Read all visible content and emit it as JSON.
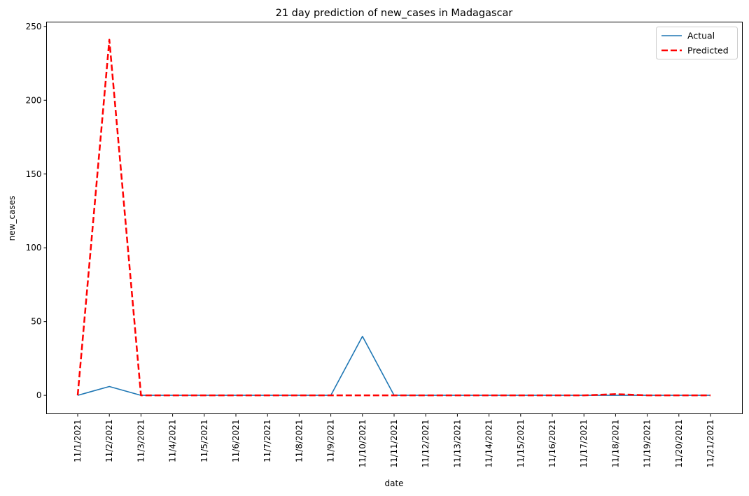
{
  "chart_data": {
    "type": "line",
    "title": "21 day prediction of new_cases in Madagascar",
    "xlabel": "date",
    "ylabel": "new_cases",
    "categories": [
      "11/1/2021",
      "11/2/2021",
      "11/3/2021",
      "11/4/2021",
      "11/5/2021",
      "11/6/2021",
      "11/7/2021",
      "11/8/2021",
      "11/9/2021",
      "11/10/2021",
      "11/11/2021",
      "11/12/2021",
      "11/13/2021",
      "11/14/2021",
      "11/15/2021",
      "11/16/2021",
      "11/17/2021",
      "11/18/2021",
      "11/19/2021",
      "11/20/2021",
      "11/21/2021"
    ],
    "ylim": [
      -12.5,
      253
    ],
    "yticks": [
      0,
      50,
      100,
      150,
      200,
      250
    ],
    "grid": false,
    "legend_position": "top-right",
    "series": [
      {
        "name": "Actual",
        "color": "#1f77b4",
        "line_style": "solid",
        "values": [
          0,
          6,
          0,
          0,
          0,
          0,
          0,
          0,
          0,
          40,
          0,
          0,
          0,
          0,
          0,
          0,
          0,
          0,
          0,
          0,
          0
        ]
      },
      {
        "name": "Predicted",
        "color": "#ff0000",
        "line_style": "dashed",
        "values": [
          0,
          241,
          0,
          0,
          0,
          0,
          0,
          0,
          0,
          0,
          0,
          0,
          0,
          0,
          0,
          0,
          0,
          0.8,
          0,
          0,
          0
        ]
      }
    ]
  }
}
